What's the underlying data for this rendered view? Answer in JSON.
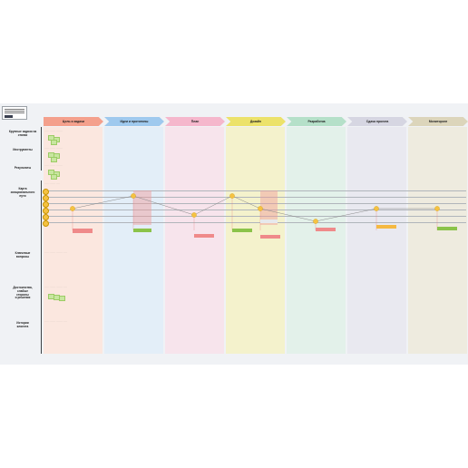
{
  "stages": [
    {
      "label": "Цель и задачи",
      "color": "#f4a08c",
      "col": "#fbe7df"
    },
    {
      "label": "Идеи и прототипы",
      "color": "#9fc9ee",
      "col": "#e3eef8"
    },
    {
      "label": "План",
      "color": "#f5b7cc",
      "col": "#f7e4ec"
    },
    {
      "label": "Дизайн",
      "color": "#ece26a",
      "col": "#f4f2cc"
    },
    {
      "label": "Разработка",
      "color": "#b5e0c9",
      "col": "#e3f1ea"
    },
    {
      "label": "Сдача проекта",
      "color": "#d6d6e2",
      "col": "#e9e9f0"
    },
    {
      "label": "Мониторинг",
      "color": "#dcd5bb",
      "col": "#eeebdf"
    }
  ],
  "rows": [
    {
      "label": "Крупные задачи на\nэтапах"
    },
    {
      "label": "Инструменты"
    },
    {
      "label": "Результаты"
    },
    {
      "label": "Карта\nэмоционального\nпути"
    },
    {
      "label": "Ключевые\nвопросы"
    },
    {
      "label": "Достоинства,\nслабые\nстороны\nи решения"
    },
    {
      "label": "Истории\nклиента"
    }
  ],
  "emotion_scores": [
    1,
    3,
    0,
    3,
    1,
    -1,
    1,
    1
  ],
  "colors": {
    "line": "#888888",
    "point": "#f5c242",
    "card_green": "#8bc34a",
    "card_red": "#ef8a8a",
    "card_orange": "#f5b942"
  }
}
